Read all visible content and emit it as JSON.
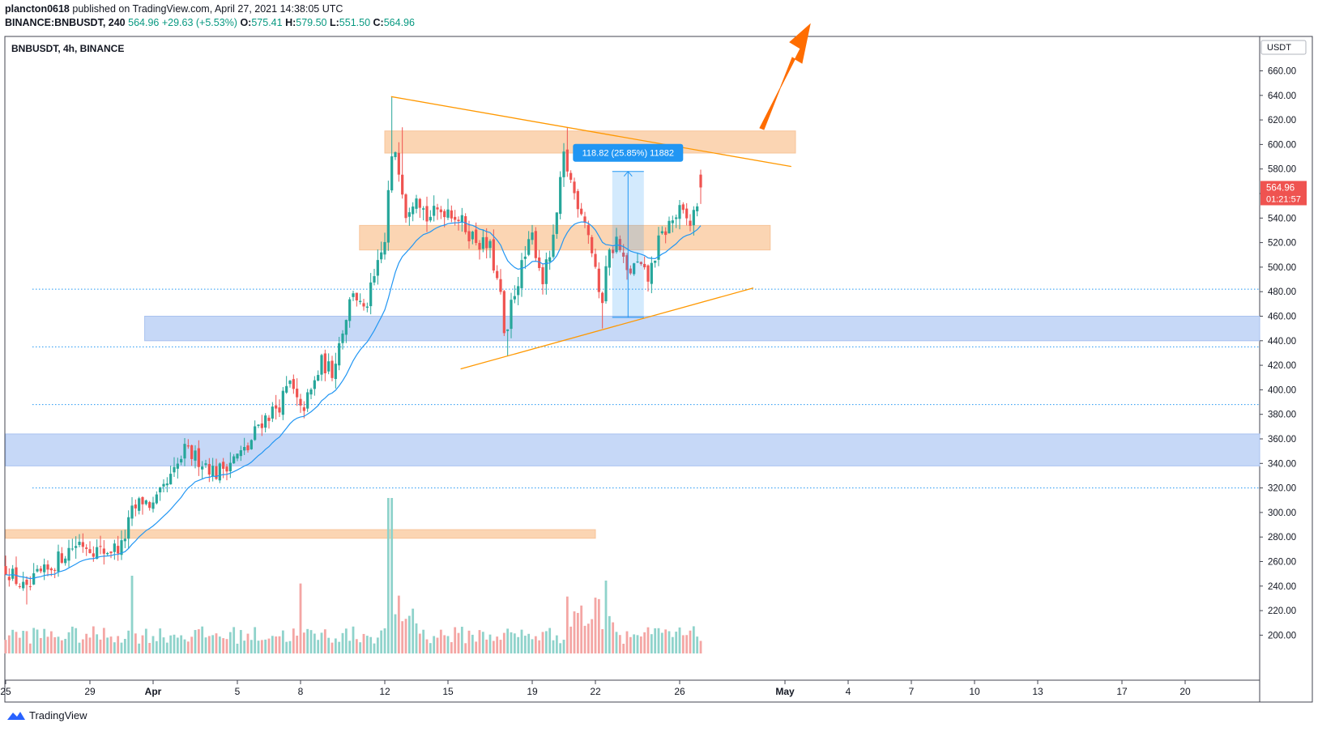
{
  "header": {
    "publisher_user": "plancton0618",
    "publisher_suffix": "published on TradingView.com, April 27, 2021 14:38:05 UTC",
    "symbol": "BINANCE:BNBUSDT, 240",
    "last": "564.96",
    "change": "+29.63 (+5.53%)",
    "o_label": "O:",
    "o_value": "575.41",
    "h_label": "H:",
    "h_value": "579.50",
    "l_label": "L:",
    "l_value": "551.50",
    "c_label": "C:",
    "c_value": "564.96"
  },
  "legend_title": "BNBUSDT, 4h, BINANCE",
  "currency_label": "USDT",
  "price_badge": {
    "price": "564.96",
    "countdown": "01:21:57",
    "color": "#ef5350"
  },
  "measure_label": "118.82 (25.85%) 11882",
  "footer": {
    "brand": "TradingView"
  },
  "colors": {
    "up": "#26a69a",
    "down": "#ef5350",
    "ema": "#2196f3",
    "orange_zone": "#fbd5b3",
    "blue_zone": "#c6d8f7",
    "trendline": "#ff9800",
    "arrow": "#ff6d00",
    "measure": "#2196f3"
  },
  "chart_data": {
    "type": "candlestick",
    "symbol": "BNBUSDT",
    "timeframe": "4h",
    "exchange": "BINANCE",
    "ylim": [
      185,
      670
    ],
    "yticks": [
      200,
      220,
      240,
      260,
      280,
      300,
      320,
      340,
      360,
      380,
      400,
      420,
      440,
      460,
      480,
      500,
      520,
      540,
      560,
      580,
      600,
      620,
      640,
      660
    ],
    "ytick_labels": [
      "200.00",
      "220.00",
      "240.00",
      "260.00",
      "280.00",
      "300.00",
      "320.00",
      "340.00",
      "360.00",
      "380.00",
      "400.00",
      "420.00",
      "440.00",
      "460.00",
      "480.00",
      "500.00",
      "520.00",
      "540.00",
      "560.00",
      "580.00",
      "600.00",
      "620.00",
      "640.00",
      "660.00"
    ],
    "x_range_days": [
      25.0,
      51.0
    ],
    "xticks": [
      {
        "label": "25",
        "day": 25
      },
      {
        "label": "29",
        "day": 29
      },
      {
        "label": "Apr",
        "day": 32
      },
      {
        "label": "5",
        "day": 36
      },
      {
        "label": "8",
        "day": 39
      },
      {
        "label": "12",
        "day": 43
      },
      {
        "label": "15",
        "day": 46
      },
      {
        "label": "19",
        "day": 50
      },
      {
        "label": "22",
        "day": 53
      },
      {
        "label": "26",
        "day": 57
      },
      {
        "label": "May",
        "day": 62
      },
      {
        "label": "4",
        "day": 65
      },
      {
        "label": "7",
        "day": 68
      },
      {
        "label": "10",
        "day": 71
      },
      {
        "label": "13",
        "day": 74
      },
      {
        "label": "17",
        "day": 78
      },
      {
        "label": "20",
        "day": 81
      }
    ],
    "close_path": [
      [
        25.0,
        255
      ],
      [
        25.5,
        245
      ],
      [
        26.0,
        235
      ],
      [
        26.5,
        248
      ],
      [
        27.0,
        252
      ],
      [
        27.5,
        262
      ],
      [
        28.0,
        270
      ],
      [
        28.5,
        276
      ],
      [
        29.0,
        272
      ],
      [
        29.5,
        268
      ],
      [
        30.0,
        270
      ],
      [
        30.5,
        272
      ],
      [
        31.0,
        300
      ],
      [
        31.5,
        310
      ],
      [
        32.0,
        305
      ],
      [
        32.5,
        318
      ],
      [
        33.0,
        332
      ],
      [
        33.5,
        350
      ],
      [
        34.0,
        345
      ],
      [
        34.5,
        340
      ],
      [
        35.0,
        332
      ],
      [
        35.5,
        340
      ],
      [
        36.0,
        346
      ],
      [
        36.5,
        352
      ],
      [
        37.0,
        372
      ],
      [
        37.5,
        380
      ],
      [
        38.0,
        388
      ],
      [
        38.5,
        405
      ],
      [
        39.0,
        382
      ],
      [
        39.5,
        398
      ],
      [
        40.0,
        422
      ],
      [
        40.5,
        415
      ],
      [
        41.0,
        450
      ],
      [
        41.5,
        482
      ],
      [
        42.0,
        462
      ],
      [
        42.5,
        490
      ],
      [
        43.0,
        520
      ],
      [
        43.25,
        580
      ],
      [
        43.5,
        596
      ],
      [
        43.75,
        575
      ],
      [
        44.0,
        545
      ],
      [
        44.5,
        562
      ],
      [
        45.0,
        540
      ],
      [
        45.5,
        545
      ],
      [
        46.0,
        548
      ],
      [
        46.5,
        540
      ],
      [
        47.0,
        528
      ],
      [
        47.5,
        520
      ],
      [
        48.0,
        515
      ],
      [
        48.5,
        475
      ],
      [
        48.75,
        430
      ],
      [
        49.0,
        470
      ],
      [
        49.5,
        500
      ],
      [
        50.0,
        525
      ],
      [
        50.5,
        490
      ],
      [
        51.0,
        520
      ],
      [
        51.5,
        590
      ],
      [
        52.0,
        560
      ],
      [
        52.5,
        540
      ],
      [
        53.0,
        500
      ],
      [
        53.25,
        460
      ],
      [
        53.5,
        505
      ],
      [
        54.0,
        522
      ],
      [
        54.5,
        495
      ],
      [
        55.0,
        502
      ],
      [
        55.5,
        490
      ],
      [
        56.0,
        520
      ],
      [
        56.5,
        535
      ],
      [
        57.0,
        545
      ],
      [
        57.5,
        535
      ],
      [
        57.75,
        548
      ],
      [
        58.0,
        565
      ]
    ],
    "volume_range": [
      0,
      100
    ],
    "zones": [
      {
        "type": "resistance",
        "color": "orange",
        "from_day": 43.0,
        "to_day": 62.5,
        "low": 593,
        "high": 611
      },
      {
        "type": "support",
        "color": "orange",
        "from_day": 41.8,
        "to_day": 61.3,
        "low": 514,
        "high": 534
      },
      {
        "type": "support",
        "color": "blue",
        "from_day": 31.6,
        "to_day": "end",
        "low": 440,
        "high": 460
      },
      {
        "type": "support",
        "color": "blue",
        "from_day": 25.0,
        "to_day": "end",
        "low": 338,
        "high": 364
      },
      {
        "type": "support",
        "color": "orange",
        "from_day": 25.0,
        "to_day": 53.0,
        "low": 279,
        "high": 286
      }
    ],
    "dotted_levels": [
      482,
      435,
      388,
      320
    ],
    "trendlines": [
      {
        "from": [
          43.3,
          639
        ],
        "to": [
          62.3,
          582
        ]
      },
      {
        "from": [
          46.6,
          417
        ],
        "to": [
          60.5,
          483
        ]
      }
    ],
    "measure": {
      "from_day": 53.8,
      "to_day": 55.3,
      "low": 459,
      "high": 578,
      "label": "118.82 (25.85%) 11882"
    }
  }
}
